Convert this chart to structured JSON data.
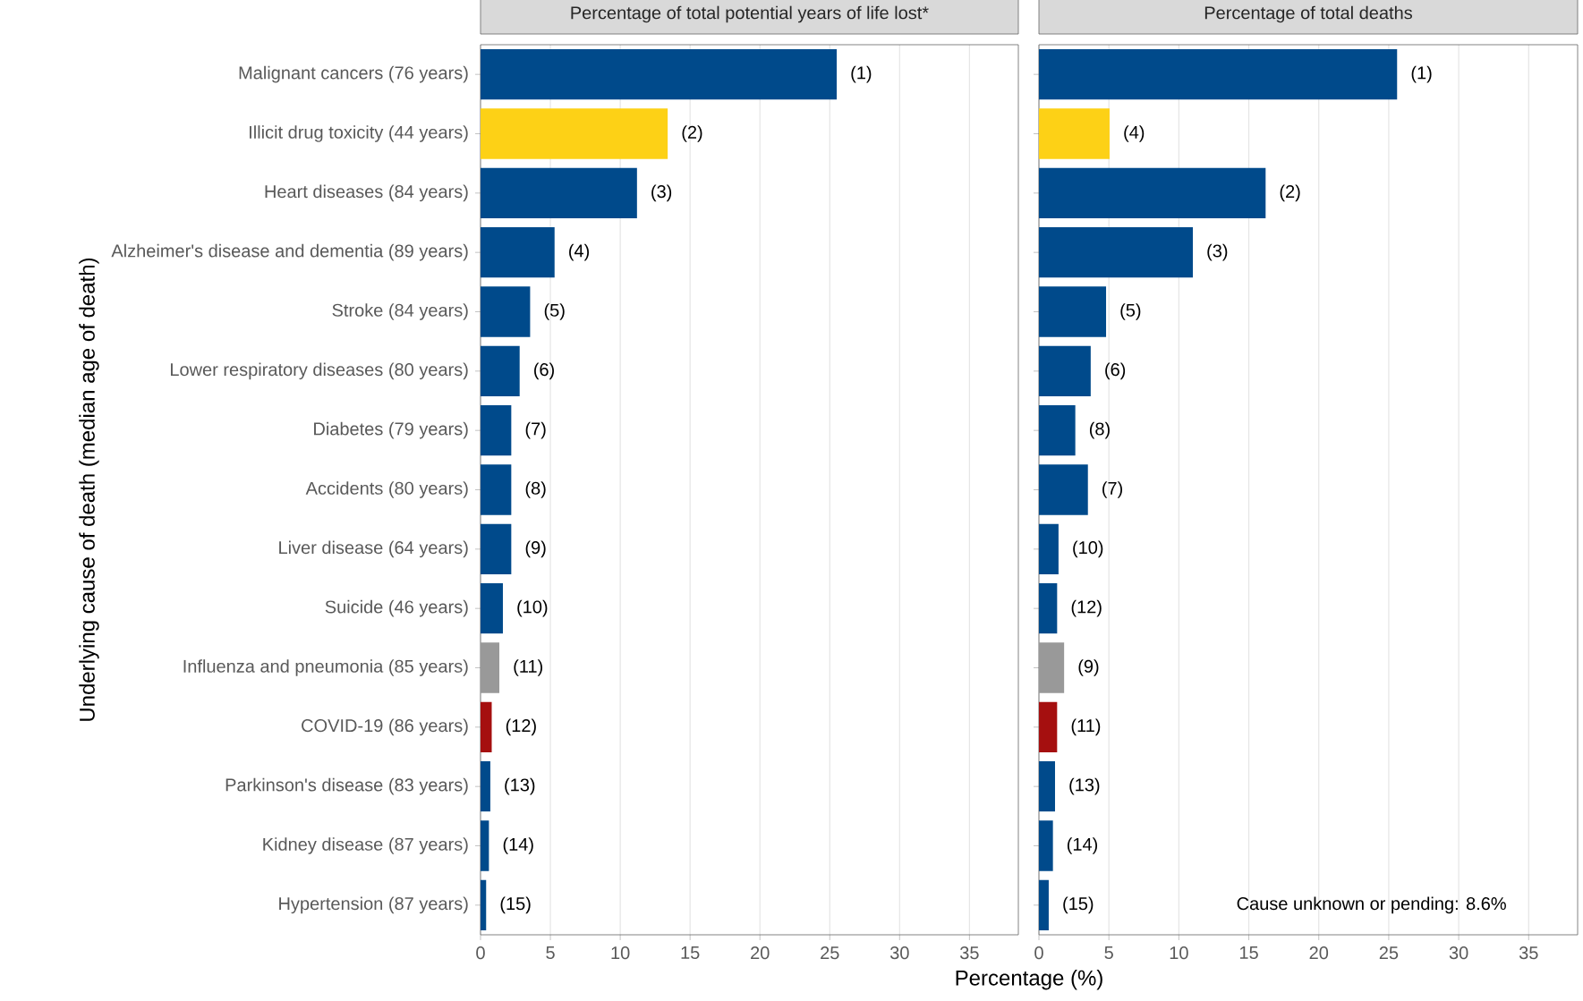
{
  "chart_data": [
    {
      "type": "bar",
      "orientation": "horizontal",
      "title": "Percentage of total potential years of life lost*",
      "xlabel": "Percentage (%)",
      "ylabel": "Underlying cause of death (median age of death)",
      "categories": [
        "Malignant cancers (76 years)",
        "Illicit drug toxicity (44 years)",
        "Heart diseases (84 years)",
        "Alzheimer's disease and dementia (89 years)",
        "Stroke (84 years)",
        "Lower respiratory diseases (80 years)",
        "Diabetes (79 years)",
        "Accidents (80 years)",
        "Liver disease (64 years)",
        "Suicide (46 years)",
        "Influenza and pneumonia (85 years)",
        "COVID-19 (86 years)",
        "Parkinson's disease (83 years)",
        "Kidney disease (87 years)",
        "Hypertension (87 years)"
      ],
      "values": [
        25.5,
        13.4,
        11.2,
        5.3,
        3.55,
        2.8,
        2.2,
        2.2,
        2.2,
        1.6,
        1.35,
        0.8,
        0.7,
        0.6,
        0.4
      ],
      "colors": [
        "#004a8b",
        "#fdd116",
        "#004a8b",
        "#004a8b",
        "#004a8b",
        "#004a8b",
        "#004a8b",
        "#004a8b",
        "#004a8b",
        "#004a8b",
        "#999999",
        "#a50f0f",
        "#004a8b",
        "#004a8b",
        "#004a8b"
      ],
      "annotations": [
        {
          "text": "(1)",
          "x": 25.5,
          "y": "Malignant cancers (76 years)"
        },
        {
          "text": "(2)",
          "x": 13.4,
          "y": "Illicit drug toxicity (44 years)"
        },
        {
          "text": "(3)",
          "x": 11.2,
          "y": "Heart diseases (84 years)"
        },
        {
          "text": "(4)",
          "x": 5.3,
          "y": "Alzheimer's disease and dementia (89 years)"
        },
        {
          "text": "(5)",
          "x": 3.55,
          "y": "Stroke (84 years)"
        },
        {
          "text": "(6)",
          "x": 2.8,
          "y": "Lower respiratory diseases (80 years)"
        },
        {
          "text": "(7)",
          "x": 2.2,
          "y": "Diabetes (79 years)"
        },
        {
          "text": "(8)",
          "x": 2.2,
          "y": "Accidents (80 years)"
        },
        {
          "text": "(9)",
          "x": 2.2,
          "y": "Liver disease (64 years)"
        },
        {
          "text": "(10)",
          "x": 1.6,
          "y": "Suicide (46 years)"
        },
        {
          "text": "(11)",
          "x": 1.35,
          "y": "Influenza and pneumonia (85 years)"
        },
        {
          "text": "(12)",
          "x": 0.8,
          "y": "COVID-19 (86 years)"
        },
        {
          "text": "(13)",
          "x": 0.7,
          "y": "Parkinson's disease (83 years)"
        },
        {
          "text": "(14)",
          "x": 0.6,
          "y": "Kidney disease (87 years)"
        },
        {
          "text": "(15)",
          "x": 0.4,
          "y": "Hypertension (87 years)"
        }
      ],
      "xlim": [
        0,
        38.5
      ],
      "xticks": [
        0,
        5,
        10,
        15,
        20,
        25,
        30,
        35
      ],
      "grid": "x"
    },
    {
      "type": "bar",
      "orientation": "horizontal",
      "title": "Percentage of total deaths",
      "categories": [
        null,
        null,
        null,
        null,
        null,
        null,
        null,
        null,
        null,
        null,
        null,
        null,
        null,
        null,
        null
      ],
      "values": [
        25.6,
        5.05,
        16.2,
        11.0,
        4.8,
        3.7,
        2.6,
        3.5,
        1.4,
        1.3,
        1.8,
        1.3,
        1.15,
        1.0,
        0.7
      ],
      "colors": [
        "#004a8b",
        "#fdd116",
        "#004a8b",
        "#004a8b",
        "#004a8b",
        "#004a8b",
        "#004a8b",
        "#004a8b",
        "#004a8b",
        "#004a8b",
        "#999999",
        "#a50f0f",
        "#004a8b",
        "#004a8b",
        "#004a8b"
      ],
      "annotations": [
        {
          "text": "(1)",
          "x": 25.6
        },
        {
          "text": "(4)",
          "x": 5.05
        },
        {
          "text": "(2)",
          "x": 16.2
        },
        {
          "text": "(3)",
          "x": 11.0
        },
        {
          "text": "(5)",
          "x": 4.8
        },
        {
          "text": "(6)",
          "x": 3.7
        },
        {
          "text": "(8)",
          "x": 2.6
        },
        {
          "text": "(7)",
          "x": 3.5
        },
        {
          "text": "(10)",
          "x": 1.4
        },
        {
          "text": "(12)",
          "x": 1.3
        },
        {
          "text": "(9)",
          "x": 1.8
        },
        {
          "text": "(11)",
          "x": 1.3
        },
        {
          "text": "(13)",
          "x": 1.15
        },
        {
          "text": "(14)",
          "x": 1.0
        },
        {
          "text": "(15)",
          "x": 0.7
        },
        "Cause unknown or pending: 8.6%"
      ],
      "xlim": [
        0,
        38.5
      ],
      "xticks": [
        0,
        5,
        10,
        15,
        20,
        25,
        30,
        35
      ],
      "grid": "x",
      "tick_labels": "x"
    }
  ]
}
